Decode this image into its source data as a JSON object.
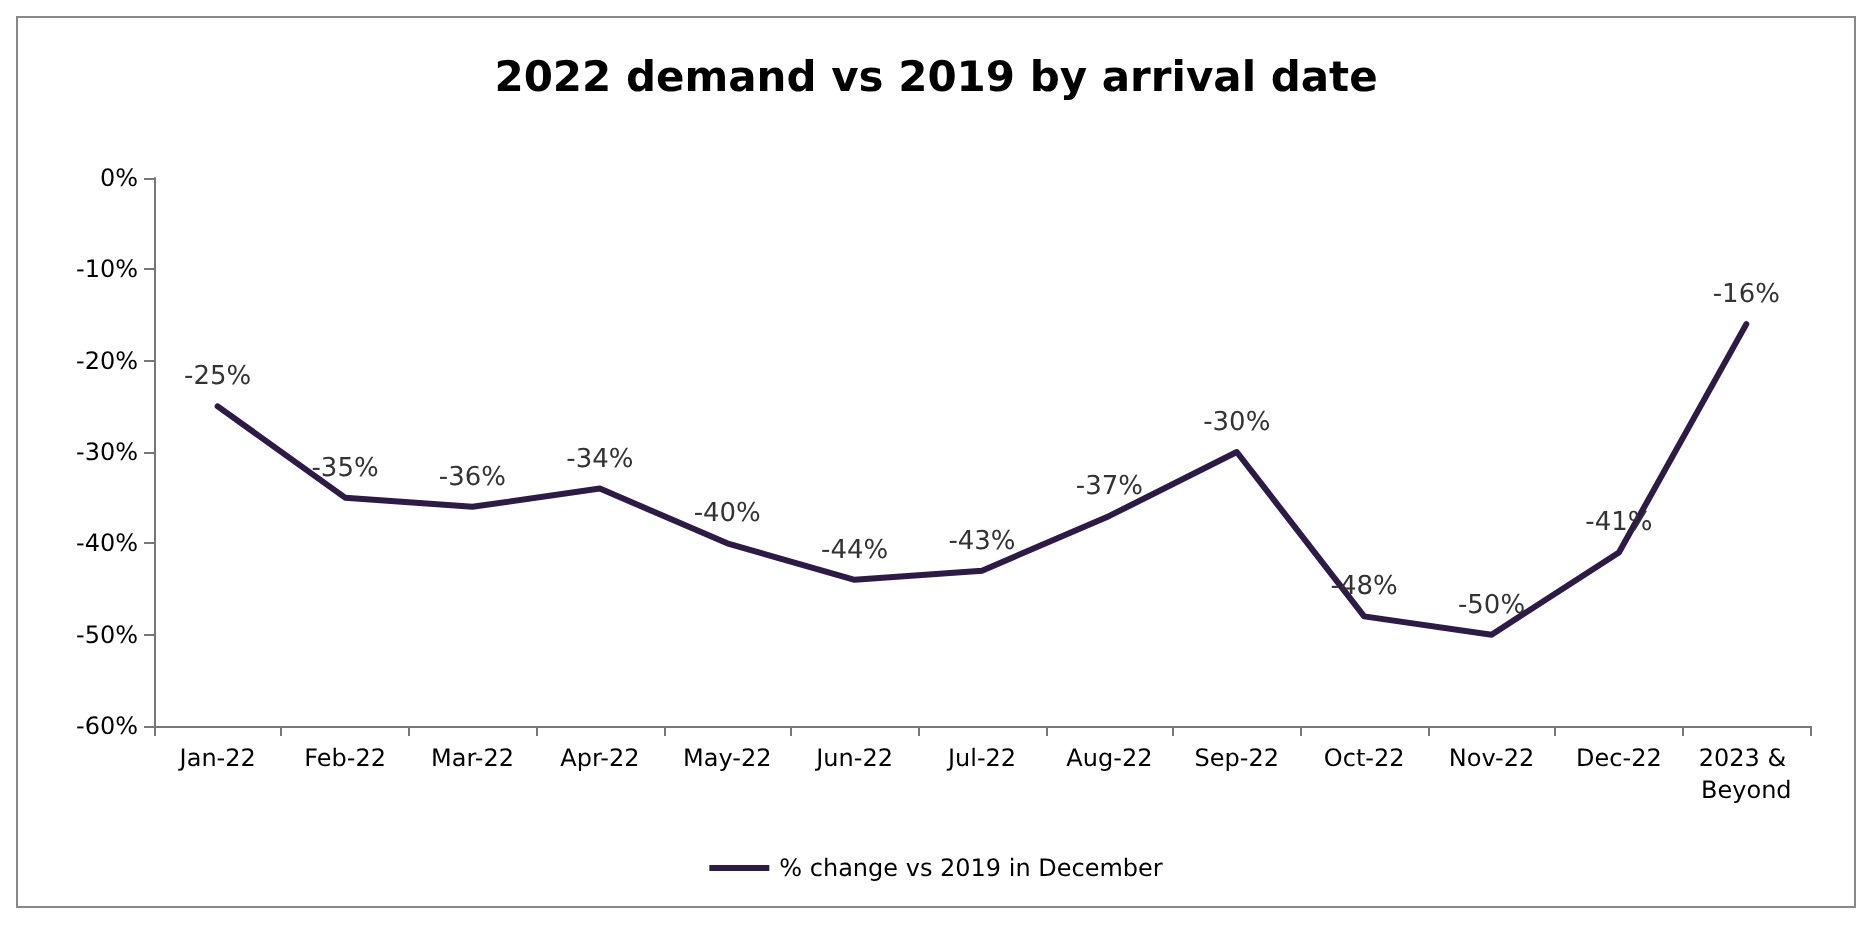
{
  "chart_data": {
    "type": "line",
    "title": "2022 demand vs 2019 by arrival date",
    "categories": [
      "Jan-22",
      "Feb-22",
      "Mar-22",
      "Apr-22",
      "May-22",
      "Jun-22",
      "Jul-22",
      "Aug-22",
      "Sep-22",
      "Oct-22",
      "Nov-22",
      "Dec-22",
      "2023 & Beyond"
    ],
    "series": [
      {
        "name": "% change vs 2019 in December",
        "color": "#2e1a47",
        "values": [
          -25,
          -35,
          -36,
          -34,
          -40,
          -44,
          -43,
          -37,
          -30,
          -48,
          -50,
          -41,
          -16
        ],
        "value_labels": [
          "-25%",
          "-35%",
          "-36%",
          "-34%",
          "-40%",
          "-44%",
          "-43%",
          "-37%",
          "-30%",
          "-48%",
          "-50%",
          "-41%",
          "-16%"
        ]
      }
    ],
    "ylim": [
      -60,
      0
    ],
    "yticks": [
      {
        "value": -60,
        "label": "-60%"
      },
      {
        "value": -50,
        "label": "-50%"
      },
      {
        "value": -40,
        "label": "-40%"
      },
      {
        "value": -30,
        "label": "-30%"
      },
      {
        "value": -20,
        "label": "-20%"
      },
      {
        "value": -10,
        "label": "-10%"
      },
      {
        "value": 0,
        "label": "0%"
      }
    ],
    "grid": false,
    "legend": "bottom",
    "marker": "none",
    "line_style": "solid"
  }
}
